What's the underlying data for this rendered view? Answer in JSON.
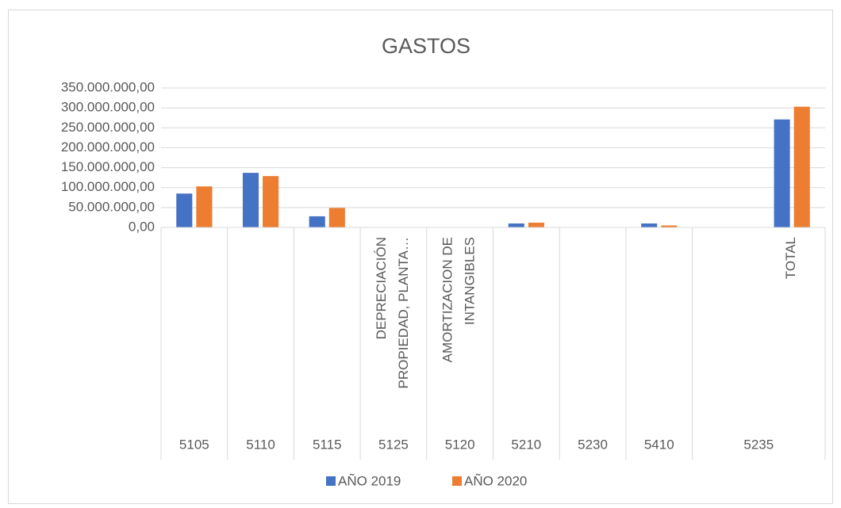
{
  "chart_data": {
    "type": "bar",
    "title": "GASTOS",
    "groups": [
      {
        "label": "5105",
        "categories": [
          null
        ]
      },
      {
        "label": "5110",
        "categories": [
          null
        ]
      },
      {
        "label": "5115",
        "categories": [
          null
        ]
      },
      {
        "label": "5125",
        "categories": [
          "DEPRECIACIÓN PROPIEDAD, PLANTA…"
        ]
      },
      {
        "label": "5120",
        "categories": [
          "AMORTIZACION DE INTANGIBLES"
        ]
      },
      {
        "label": "5210",
        "categories": [
          null
        ]
      },
      {
        "label": "5230",
        "categories": [
          null
        ]
      },
      {
        "label": "5410",
        "categories": [
          null
        ]
      },
      {
        "label": "5235",
        "categories": [
          null,
          "TOTAL"
        ]
      }
    ],
    "series": [
      {
        "name": "AÑO 2019",
        "color": "#4472c4",
        "values": [
          85000000,
          137000000,
          28000000,
          300000,
          300000,
          10000000,
          500000,
          10000000,
          0,
          271000000
        ]
      },
      {
        "name": "AÑO 2020",
        "color": "#ed7d31",
        "values": [
          103000000,
          129000000,
          49000000,
          500000,
          1000000,
          12000000,
          500000,
          5000000,
          0,
          303000000
        ]
      }
    ],
    "ylim": [
      0,
      350000000
    ],
    "yticks": [
      {
        "value": 0,
        "label": "0,00"
      },
      {
        "value": 50000000,
        "label": "50.000.000,00"
      },
      {
        "value": 100000000,
        "label": "100.000.000,00"
      },
      {
        "value": 150000000,
        "label": "150.000.000,00"
      },
      {
        "value": 200000000,
        "label": "200.000.000,00"
      },
      {
        "value": 250000000,
        "label": "250.000.000,00"
      },
      {
        "value": 300000000,
        "label": "300.000.000,00"
      },
      {
        "value": 350000000,
        "label": "350.000.000,00"
      }
    ],
    "grid": true,
    "legend": "bottom"
  }
}
